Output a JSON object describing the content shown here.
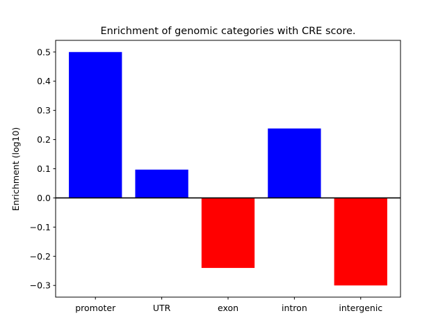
{
  "chart_data": {
    "type": "bar",
    "title": "Enrichment of genomic categories with CRE score.",
    "xlabel": "",
    "ylabel": "Enrichment (log10)",
    "categories": [
      "promoter",
      "UTR",
      "exon",
      "intron",
      "intergenic"
    ],
    "values": [
      0.5,
      0.097,
      -0.24,
      0.238,
      -0.3
    ],
    "ylim": [
      -0.34,
      0.54
    ],
    "yticks": [
      -0.3,
      -0.2,
      -0.1,
      0.0,
      0.1,
      0.2,
      0.3,
      0.4,
      0.5
    ],
    "ytick_labels": [
      "−0.3",
      "−0.2",
      "−0.1",
      "0.0",
      "0.1",
      "0.2",
      "0.3",
      "0.4",
      "0.5"
    ],
    "grid": false,
    "zero_line": true,
    "colors": {
      "positive": "#0000ff",
      "negative": "#ff0000",
      "axis": "#000000"
    }
  }
}
